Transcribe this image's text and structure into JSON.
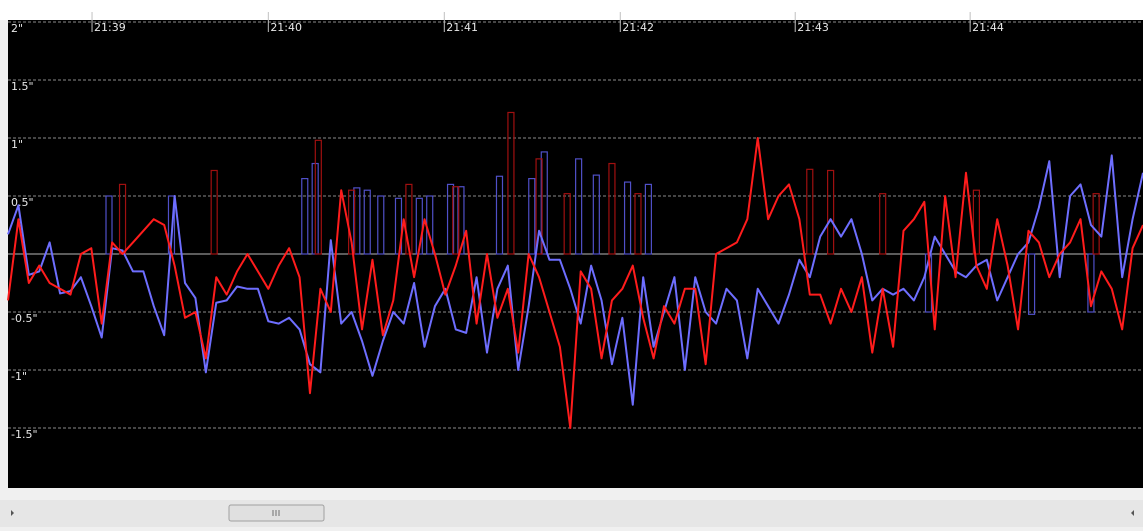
{
  "chart_data": {
    "type": "line",
    "xlim": [
      0,
      109
    ],
    "xticks": [
      {
        "value": 8.07,
        "label": "21:39"
      },
      {
        "value": 25.0,
        "label": "21:40"
      },
      {
        "value": 41.9,
        "label": "21:41"
      },
      {
        "value": 58.8,
        "label": "21:42"
      },
      {
        "value": 75.6,
        "label": "21:43"
      },
      {
        "value": 92.4,
        "label": "21:44"
      }
    ],
    "ylim": [
      -2,
      2
    ],
    "yticks": [
      {
        "value": 2,
        "label": "2\""
      },
      {
        "value": 1.5,
        "label": "1.5\""
      },
      {
        "value": 1,
        "label": "1\""
      },
      {
        "value": 0.5,
        "label": "0.5\""
      },
      {
        "value": -0.5,
        "label": "-0.5\""
      },
      {
        "value": -1,
        "label": "-1\""
      },
      {
        "value": -1.5,
        "label": "-1.5\""
      }
    ],
    "grid": true,
    "series": [
      {
        "type": "bar",
        "color": "#5050c8",
        "x": [
          9.7,
          15.7,
          28.5,
          29.5,
          33.5,
          34.5,
          35.8,
          37.5,
          39.5,
          40.5,
          42.5,
          43.5,
          47.2,
          50.3,
          51.5,
          54.8,
          56.5,
          59.5,
          61.5,
          88.4,
          98.3,
          104
        ],
        "values": [
          0.5,
          0.5,
          0.65,
          0.78,
          0.57,
          0.55,
          0.5,
          0.48,
          0.48,
          0.5,
          0.6,
          0.58,
          0.67,
          0.65,
          0.88,
          0.82,
          0.68,
          0.62,
          0.6,
          -0.5,
          -0.52,
          -0.5
        ]
      },
      {
        "type": "bar",
        "color": "#a01010",
        "x": [
          11,
          19.8,
          29.8,
          33,
          38.5,
          43,
          48.3,
          51,
          53.7,
          58,
          60.5,
          77,
          79,
          84,
          93,
          104.5
        ],
        "values": [
          0.6,
          0.72,
          0.98,
          0.55,
          0.6,
          0.58,
          1.22,
          0.82,
          0.52,
          0.78,
          0.52,
          0.73,
          0.72,
          0.52,
          0.55,
          0.52
        ]
      },
      {
        "type": "line",
        "color": "#6e6eff",
        "values": [
          0.17,
          0.42,
          -0.18,
          -0.15,
          0.1,
          -0.34,
          -0.32,
          -0.2,
          -0.45,
          -0.72,
          0.05,
          0.03,
          -0.15,
          -0.15,
          -0.45,
          -0.7,
          0.5,
          -0.25,
          -0.38,
          -1.02,
          -0.42,
          -0.4,
          -0.28,
          -0.3,
          -0.3,
          -0.58,
          -0.6,
          -0.55,
          -0.65,
          -0.95,
          -1.02,
          0.12,
          -0.6,
          -0.5,
          -0.75,
          -1.05,
          -0.75,
          -0.5,
          -0.6,
          -0.25,
          -0.8,
          -0.45,
          -0.3,
          -0.65,
          -0.68,
          -0.2,
          -0.85,
          -0.3,
          -0.1,
          -1.0,
          -0.45,
          0.2,
          -0.05,
          -0.05,
          -0.3,
          -0.6,
          -0.1,
          -0.4,
          -0.95,
          -0.55,
          -1.3,
          -0.2,
          -0.8,
          -0.5,
          -0.2,
          -1.0,
          -0.2,
          -0.5,
          -0.6,
          -0.3,
          -0.4,
          -0.9,
          -0.3,
          -0.45,
          -0.6,
          -0.35,
          -0.05,
          -0.2,
          0.15,
          0.3,
          0.15,
          0.3,
          0.0,
          -0.4,
          -0.3,
          -0.35,
          -0.3,
          -0.4,
          -0.2,
          0.15,
          0.0,
          -0.15,
          -0.2,
          -0.1,
          -0.05,
          -0.4,
          -0.2,
          0.0,
          0.1,
          0.4,
          0.8,
          -0.2,
          0.5,
          0.6,
          0.25,
          0.15,
          0.85,
          -0.2,
          0.3,
          0.7
        ]
      },
      {
        "type": "line",
        "color": "#ff1c1c",
        "values": [
          -0.4,
          0.3,
          -0.25,
          -0.1,
          -0.25,
          -0.3,
          -0.35,
          0.0,
          0.05,
          -0.6,
          0.1,
          0.0,
          0.1,
          0.2,
          0.3,
          0.25,
          -0.1,
          -0.55,
          -0.5,
          -0.9,
          -0.2,
          -0.35,
          -0.15,
          0.0,
          -0.15,
          -0.3,
          -0.1,
          0.05,
          -0.2,
          -1.2,
          -0.3,
          -0.5,
          0.55,
          0.1,
          -0.65,
          -0.05,
          -0.7,
          -0.4,
          0.3,
          -0.2,
          0.3,
          0.0,
          -0.35,
          -0.1,
          0.2,
          -0.6,
          0.0,
          -0.55,
          -0.3,
          -0.85,
          0.0,
          -0.2,
          -0.5,
          -0.8,
          -1.5,
          -0.15,
          -0.3,
          -0.9,
          -0.4,
          -0.3,
          -0.1,
          -0.55,
          -0.9,
          -0.45,
          -0.6,
          -0.3,
          -0.3,
          -0.95,
          0.0,
          0.05,
          0.1,
          0.3,
          1.0,
          0.3,
          0.5,
          0.6,
          0.3,
          -0.35,
          -0.35,
          -0.6,
          -0.3,
          -0.5,
          -0.2,
          -0.85,
          -0.3,
          -0.8,
          0.2,
          0.3,
          0.45,
          -0.65,
          0.5,
          -0.2,
          0.7,
          -0.1,
          -0.3,
          0.3,
          -0.1,
          -0.65,
          0.2,
          0.1,
          -0.2,
          0.0,
          0.1,
          0.3,
          -0.45,
          -0.15,
          -0.3,
          -0.65,
          0.05,
          0.25
        ]
      }
    ]
  }
}
